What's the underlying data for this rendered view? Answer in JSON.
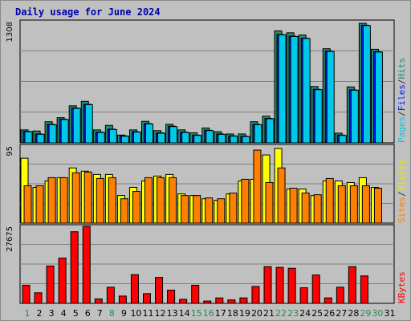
{
  "chart_data": {
    "type": "bar",
    "title": "Daily usage for June 2024",
    "days": [
      "1",
      "2",
      "3",
      "4",
      "5",
      "6",
      "7",
      "8",
      "9",
      "10",
      "11",
      "12",
      "13",
      "14",
      "15",
      "16",
      "17",
      "18",
      "19",
      "20",
      "21",
      "22",
      "23",
      "24",
      "25",
      "26",
      "27",
      "28",
      "29",
      "30",
      "31"
    ],
    "weekend_days": [
      "1",
      "8",
      "15",
      "16",
      "22",
      "23",
      "29",
      "30"
    ],
    "panels": [
      {
        "name": "pages-files-hits",
        "axis_max_label": "1308",
        "axis_max": 1308,
        "legend": [
          {
            "text": "Pages",
            "color": "#00c8e8"
          },
          {
            "text": "/",
            "color": "#303030"
          },
          {
            "text": "Files",
            "color": "#0020ff"
          },
          {
            "text": "/",
            "color": "#303030"
          },
          {
            "text": "Hits",
            "color": "#1f8f6f"
          }
        ],
        "series": [
          {
            "name": "Hits",
            "color": "#1f8f6f",
            "values": [
              140,
              128,
              228,
              272,
              400,
              448,
              140,
              188,
              84,
              140,
              232,
              132,
              200,
              140,
              108,
              160,
              120,
              96,
              96,
              228,
              288,
              1208,
              1188,
              1164,
              608,
              1016,
              104,
              604,
              1290,
              1010,
              0
            ]
          },
          {
            "name": "Files",
            "color": "#0020ff",
            "values": [
              124,
              96,
              200,
              256,
              376,
              416,
              116,
              148,
              76,
              120,
              208,
              108,
              180,
              116,
              84,
              136,
              96,
              76,
              72,
              200,
              264,
              1170,
              1152,
              1130,
              578,
              990,
              84,
              572,
              1270,
              984,
              0
            ]
          },
          {
            "name": "Pages",
            "color": "#00c8e8",
            "values": [
              120,
              92,
              196,
              252,
              372,
              412,
              112,
              144,
              72,
              116,
              204,
              104,
              176,
              112,
              80,
              132,
              92,
              72,
              68,
              196,
              260,
              1166,
              1148,
              1126,
              574,
              986,
              80,
              568,
              1266,
              980,
              0
            ]
          }
        ]
      },
      {
        "name": "sites-visits",
        "axis_max_label": "95",
        "axis_max": 95,
        "legend": [
          {
            "text": "Sites",
            "color": "#ff8000"
          },
          {
            "text": "/",
            "color": "#303030"
          },
          {
            "text": "Visits",
            "color": "#e8e800"
          }
        ],
        "series": [
          {
            "name": "Visits",
            "color": "#ffff00",
            "values": [
              80,
              44,
              52,
              56,
              68,
              64,
              60,
              60,
              34,
              44,
              52,
              58,
              60,
              36,
              34,
              30,
              28,
              36,
              52,
              54,
              84,
              92,
              42,
              42,
              34,
              52,
              52,
              50,
              56,
              44,
              0
            ]
          },
          {
            "name": "Sites",
            "color": "#ff8000",
            "values": [
              46,
              46,
              56,
              56,
              62,
              63,
              55,
              56,
              30,
              39,
              56,
              56,
              56,
              34,
              34,
              31,
              30,
              37,
              54,
              90,
              50,
              68,
              43,
              37,
              35,
              55,
              46,
              46,
              46,
              43,
              0
            ]
          }
        ]
      },
      {
        "name": "kbytes",
        "axis_max_label": "27675",
        "axis_max": 27675,
        "legend": [
          {
            "text": "KBytes",
            "color": "#ff0000"
          }
        ],
        "series": [
          {
            "name": "KBytes",
            "color": "#ff0000",
            "values": [
              6510,
              3795,
              13400,
              16250,
              25730,
              27675,
              1590,
              5790,
              2620,
              10290,
              3500,
              9320,
              4750,
              1440,
              6510,
              840,
              1940,
              1230,
              1960,
              6070,
              13180,
              12920,
              12600,
              5600,
              10180,
              1960,
              5790,
              13180,
              9860,
              0,
              0
            ]
          }
        ]
      }
    ]
  }
}
